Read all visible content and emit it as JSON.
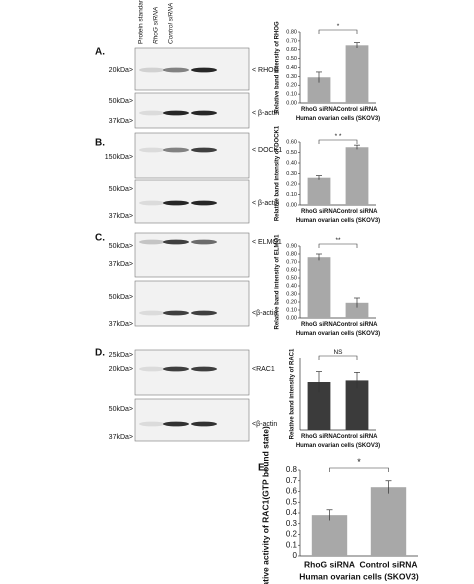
{
  "column_headers": [
    "Protein standard",
    "RhoG siRNA",
    "Control siRNA"
  ],
  "blots": [
    [
      {
        "markers": [
          "20kDa>"
        ],
        "band": "< RHOG"
      },
      {
        "markers": [
          "50kDa>",
          "37kDa>"
        ],
        "band": "< β-actin"
      }
    ],
    [
      {
        "markers": [
          "150kDa>"
        ],
        "band": "< DOCK1"
      },
      {
        "markers": [
          "50kDa>",
          "37kDa>"
        ],
        "band": "< β-actin"
      }
    ],
    [
      {
        "markers": [
          "50kDa>",
          "37kDa>"
        ],
        "band": "< ELMO1"
      },
      {
        "markers": [
          "50kDa>",
          "37kDa>"
        ],
        "band": "<β-actin"
      }
    ],
    [
      {
        "markers": [
          "25kDa>",
          "20kDa>"
        ],
        "band": "<RAC1"
      },
      {
        "markers": [
          "50kDa>",
          "37kDa>"
        ],
        "band": "<β-actin"
      }
    ]
  ],
  "chart_data": [
    {
      "type": "bar",
      "label": "A.",
      "ylabel": "Relative band intensity of RHOG",
      "xlabel": "Human ovarian cells (SKOV3)",
      "categories": [
        "RhoG siRNA",
        "Control siRNA"
      ],
      "values": [
        0.29,
        0.65
      ],
      "errors": [
        0.06,
        0.03
      ],
      "color": "#a8a8a8",
      "significance": "*",
      "ylim": [
        0,
        0.8
      ],
      "yticks": [
        {
          "value": 0,
          "label": "0.00"
        },
        {
          "value": 0.1,
          "label": "0.10"
        },
        {
          "value": 0.2,
          "label": "0.20"
        },
        {
          "value": 0.3,
          "label": "0.30"
        },
        {
          "value": 0.4,
          "label": "0.40"
        },
        {
          "value": 0.5,
          "label": "0.50"
        },
        {
          "value": 0.6,
          "label": "0.60"
        },
        {
          "value": 0.7,
          "label": "0.70"
        },
        {
          "value": 0.8,
          "label": "0.80"
        }
      ]
    },
    {
      "type": "bar",
      "label": "B.",
      "ylabel": "Relative band intensity of DOCK1",
      "xlabel": "Human ovarian cells (SKOV3)",
      "categories": [
        "RhoG siRNA",
        "Control siRNA"
      ],
      "values": [
        0.26,
        0.55
      ],
      "errors": [
        0.02,
        0.02
      ],
      "color": "#a8a8a8",
      "significance": "* *",
      "ylim": [
        0,
        0.6
      ],
      "yticks": [
        {
          "value": 0,
          "label": "0.00"
        },
        {
          "value": 0.1,
          "label": "0.10"
        },
        {
          "value": 0.2,
          "label": "0.20"
        },
        {
          "value": 0.3,
          "label": "0.30"
        },
        {
          "value": 0.4,
          "label": "0.40"
        },
        {
          "value": 0.5,
          "label": "0.50"
        },
        {
          "value": 0.6,
          "label": "0.60"
        }
      ]
    },
    {
      "type": "bar",
      "label": "C.",
      "ylabel": "Relative band intensity of ELMO1",
      "xlabel": "Human ovarian cells (SKOV3)",
      "categories": [
        "RhoG siRNA",
        "Control siRNA"
      ],
      "values": [
        0.76,
        0.19
      ],
      "errors": [
        0.04,
        0.06
      ],
      "color": "#a8a8a8",
      "significance": "**",
      "ylim": [
        0,
        0.9
      ],
      "yticks": [
        {
          "value": 0,
          "label": "0.00"
        },
        {
          "value": 0.1,
          "label": "0.10"
        },
        {
          "value": 0.2,
          "label": "0.20"
        },
        {
          "value": 0.3,
          "label": "0.30"
        },
        {
          "value": 0.4,
          "label": "0.40"
        },
        {
          "value": 0.5,
          "label": "0.50"
        },
        {
          "value": 0.6,
          "label": "0.60"
        },
        {
          "value": 0.7,
          "label": "0.70"
        },
        {
          "value": 0.8,
          "label": "0.80"
        },
        {
          "value": 0.9,
          "label": "0.90"
        }
      ]
    },
    {
      "type": "bar",
      "label": "D.",
      "ylabel": "Relative band intensity of RAC1",
      "xlabel": "Human ovarian cells (SKOV3)",
      "categories": [
        "RhoG siRNA",
        "Control siRNA"
      ],
      "values": [
        0.6,
        0.62
      ],
      "errors": [
        0.13,
        0.1
      ],
      "color": "#3b3b3b",
      "significance": "NS",
      "ylim": [
        0,
        0.9
      ]
    },
    {
      "type": "bar",
      "label": "E.",
      "ylabel": "Relative activity of RAC1(GTP bound state)",
      "xlabel": "Human ovarian cells (SKOV3)",
      "categories": [
        "RhoG siRNA",
        "Control siRNA"
      ],
      "values": [
        0.38,
        0.64
      ],
      "errors": [
        0.05,
        0.06
      ],
      "color": "#a8a8a8",
      "significance": "*",
      "ylim": [
        0,
        0.8
      ],
      "yticks": [
        0,
        0.1,
        0.2,
        0.3,
        0.4,
        0.5,
        0.6,
        0.7,
        0.8
      ]
    }
  ]
}
